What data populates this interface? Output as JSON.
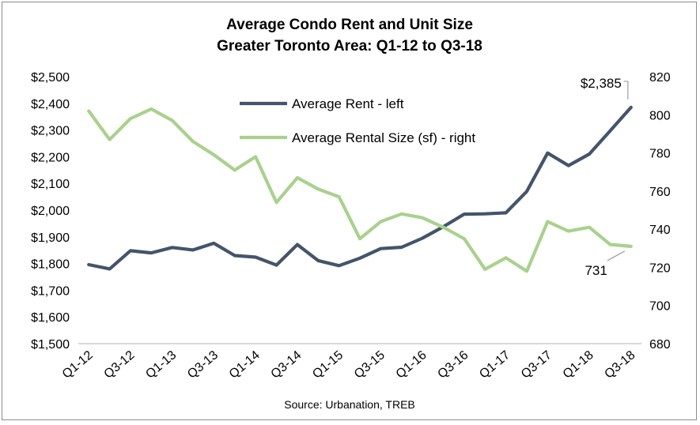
{
  "chart_data": {
    "type": "line",
    "title": "Average Condo Rent and Unit Size",
    "subtitle": "Greater Toronto Area: Q1-12 to Q3-18",
    "source": "Source: Urbanation, TREB",
    "x_tick_labels": [
      "Q1-12",
      "Q3-12",
      "Q1-13",
      "Q3-13",
      "Q1-14",
      "Q3-14",
      "Q1-15",
      "Q3-15",
      "Q1-16",
      "Q3-16",
      "Q1-17",
      "Q3-17",
      "Q1-18",
      "Q3-18"
    ],
    "x": [
      "Q1-12",
      "Q2-12",
      "Q3-12",
      "Q4-12",
      "Q1-13",
      "Q2-13",
      "Q3-13",
      "Q4-13",
      "Q1-14",
      "Q2-14",
      "Q3-14",
      "Q4-14",
      "Q1-15",
      "Q2-15",
      "Q3-15",
      "Q4-15",
      "Q1-16",
      "Q2-16",
      "Q3-16",
      "Q4-16",
      "Q1-17",
      "Q2-17",
      "Q3-17",
      "Q4-17",
      "Q1-18",
      "Q2-18",
      "Q3-18"
    ],
    "y_left": {
      "ylim": [
        1500,
        2500
      ],
      "ticks": [
        "$1,500",
        "$1,600",
        "$1,700",
        "$1,800",
        "$1,900",
        "$2,000",
        "$2,100",
        "$2,200",
        "$2,300",
        "$2,400",
        "$2,500"
      ]
    },
    "y_right": {
      "ylim": [
        680,
        820
      ],
      "ticks": [
        "680",
        "700",
        "720",
        "740",
        "760",
        "780",
        "800",
        "820"
      ]
    },
    "series": [
      {
        "name": "Average Rent - left",
        "axis": "left",
        "color": "#44546a",
        "values": [
          1796,
          1780,
          1848,
          1840,
          1860,
          1851,
          1876,
          1830,
          1824,
          1794,
          1871,
          1811,
          1792,
          1820,
          1856,
          1861,
          1895,
          1938,
          1985,
          1986,
          1990,
          2070,
          2214,
          2167,
          2210,
          2297,
          2385
        ]
      },
      {
        "name": "Average Rental Size (sf) - right",
        "axis": "right",
        "color": "#a9d18e",
        "values": [
          802,
          787,
          798,
          803,
          797,
          786,
          779,
          771,
          778,
          754,
          767,
          761,
          757,
          735,
          744,
          748,
          746,
          741,
          735,
          719,
          725,
          718,
          744,
          739,
          741,
          732,
          731
        ]
      }
    ],
    "annotations": [
      {
        "text": "$2,385",
        "series": 0,
        "point": 26
      },
      {
        "text": "731",
        "series": 1,
        "point": 26
      }
    ],
    "legend_position": "top-center",
    "grid": false
  }
}
